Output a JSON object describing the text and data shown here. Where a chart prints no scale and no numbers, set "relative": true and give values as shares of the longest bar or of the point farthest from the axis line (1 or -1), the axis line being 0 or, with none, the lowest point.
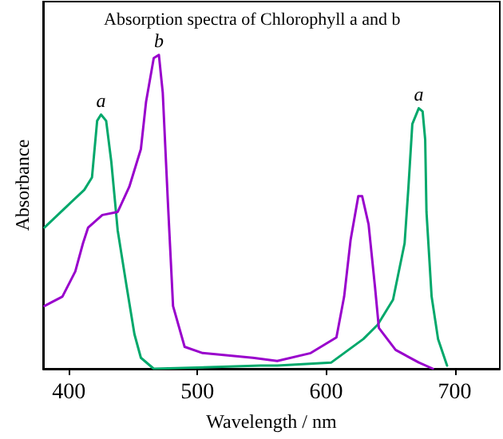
{
  "chart_data": {
    "type": "line",
    "relative": true,
    "title": "Absorption spectra of Chlorophyll a and b",
    "xlabel": "Wavelength / nm",
    "ylabel": "Absorbance",
    "xlim": [
      380,
      735
    ],
    "xticks": [
      400,
      500,
      600,
      700
    ],
    "grid": false,
    "marker": "none",
    "line_style": "solid",
    "annotations": [
      {
        "text": "a",
        "x": 425,
        "y": 0.81
      },
      {
        "text": "b",
        "x": 470,
        "y": 1
      },
      {
        "text": "a",
        "x": 672,
        "y": 0.83
      }
    ],
    "series": [
      {
        "color": "#00a86b",
        "x": [
          381,
          399,
          412,
          418,
          422,
          425,
          429,
          433,
          438,
          445,
          451,
          456,
          466,
          549,
          562,
          604,
          629,
          640,
          652,
          661,
          664,
          667,
          672,
          675,
          677,
          678,
          682,
          687,
          694
        ],
        "values": [
          0.45,
          0.52,
          0.57,
          0.61,
          0.79,
          0.81,
          0.79,
          0.66,
          0.44,
          0.26,
          0.11,
          0.035,
          0,
          0.01,
          0.01,
          0.02,
          0.095,
          0.14,
          0.22,
          0.4,
          0.58,
          0.78,
          0.83,
          0.82,
          0.73,
          0.5,
          0.23,
          0.095,
          0.01
        ]
      },
      {
        "color": "#9900cc",
        "x": [
          381,
          395,
          405,
          411,
          415,
          426,
          438,
          447,
          456,
          460,
          466,
          470,
          473,
          477,
          481,
          490,
          504,
          543,
          562,
          588,
          608,
          614,
          619,
          625,
          628,
          633,
          638,
          641,
          654,
          672,
          683
        ],
        "values": [
          0.2,
          0.23,
          0.31,
          0.4,
          0.45,
          0.49,
          0.5,
          0.58,
          0.7,
          0.85,
          0.99,
          1,
          0.88,
          0.53,
          0.2,
          0.07,
          0.05,
          0.035,
          0.025,
          0.05,
          0.1,
          0.23,
          0.41,
          0.55,
          0.55,
          0.46,
          0.26,
          0.13,
          0.06,
          0.02,
          0
        ]
      }
    ]
  }
}
